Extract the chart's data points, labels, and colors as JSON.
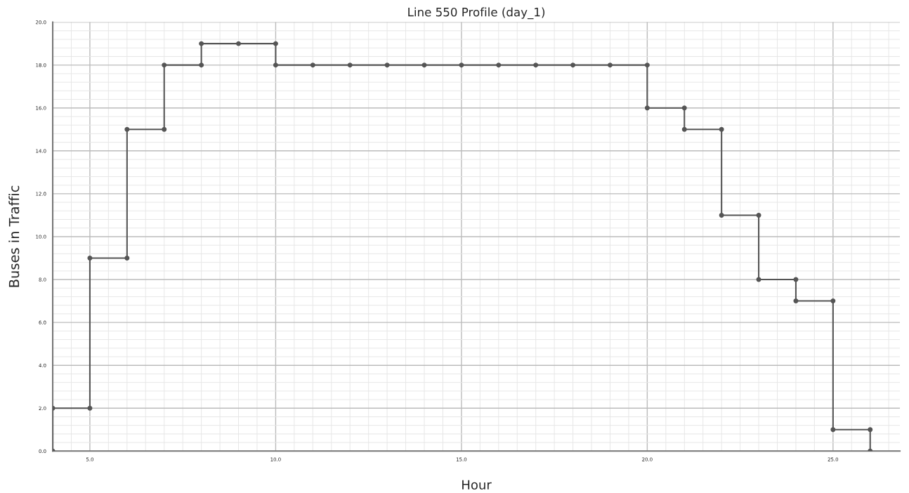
{
  "chart_data": {
    "type": "line",
    "title": "Line 550 Profile (day_1)",
    "xlabel": "Hour",
    "ylabel": "Buses in Traffic",
    "x": [
      4,
      4,
      5,
      5,
      6,
      6,
      7,
      7,
      8,
      8,
      9,
      10,
      10,
      11,
      12,
      13,
      14,
      15,
      16,
      17,
      18,
      19,
      20,
      20,
      21,
      21,
      22,
      22,
      23,
      23,
      24,
      24,
      25,
      25,
      26,
      26
    ],
    "series": [
      {
        "color": "#555555",
        "values": [
          0,
          2,
          2,
          9,
          9,
          15,
          15,
          18,
          18,
          19,
          19,
          19,
          18,
          18,
          18,
          18,
          18,
          18,
          18,
          18,
          18,
          18,
          18,
          16,
          16,
          15,
          15,
          11,
          11,
          8,
          8,
          7,
          7,
          1,
          1,
          0
        ]
      }
    ],
    "xlim": [
      4,
      26.8
    ],
    "xticks": [
      {
        "value": 5,
        "label": "5.0"
      },
      {
        "value": 10,
        "label": "10.0"
      },
      {
        "value": 15,
        "label": "15.0"
      },
      {
        "value": 20,
        "label": "20.0"
      },
      {
        "value": 25,
        "label": "25.0"
      }
    ],
    "ylim": [
      0,
      20
    ],
    "yticks": [
      {
        "value": 0,
        "label": "0.0"
      },
      {
        "value": 2,
        "label": "2.0"
      },
      {
        "value": 4,
        "label": "4.0"
      },
      {
        "value": 6,
        "label": "6.0"
      },
      {
        "value": 8,
        "label": "8.0"
      },
      {
        "value": 10,
        "label": "10.0"
      },
      {
        "value": 12,
        "label": "12.0"
      },
      {
        "value": 14,
        "label": "14.0"
      },
      {
        "value": 16,
        "label": "16.0"
      },
      {
        "value": 18,
        "label": "18.0"
      },
      {
        "value": 20,
        "label": "20.0"
      }
    ],
    "grid": true,
    "marker": "circle",
    "line_style": "solid"
  }
}
